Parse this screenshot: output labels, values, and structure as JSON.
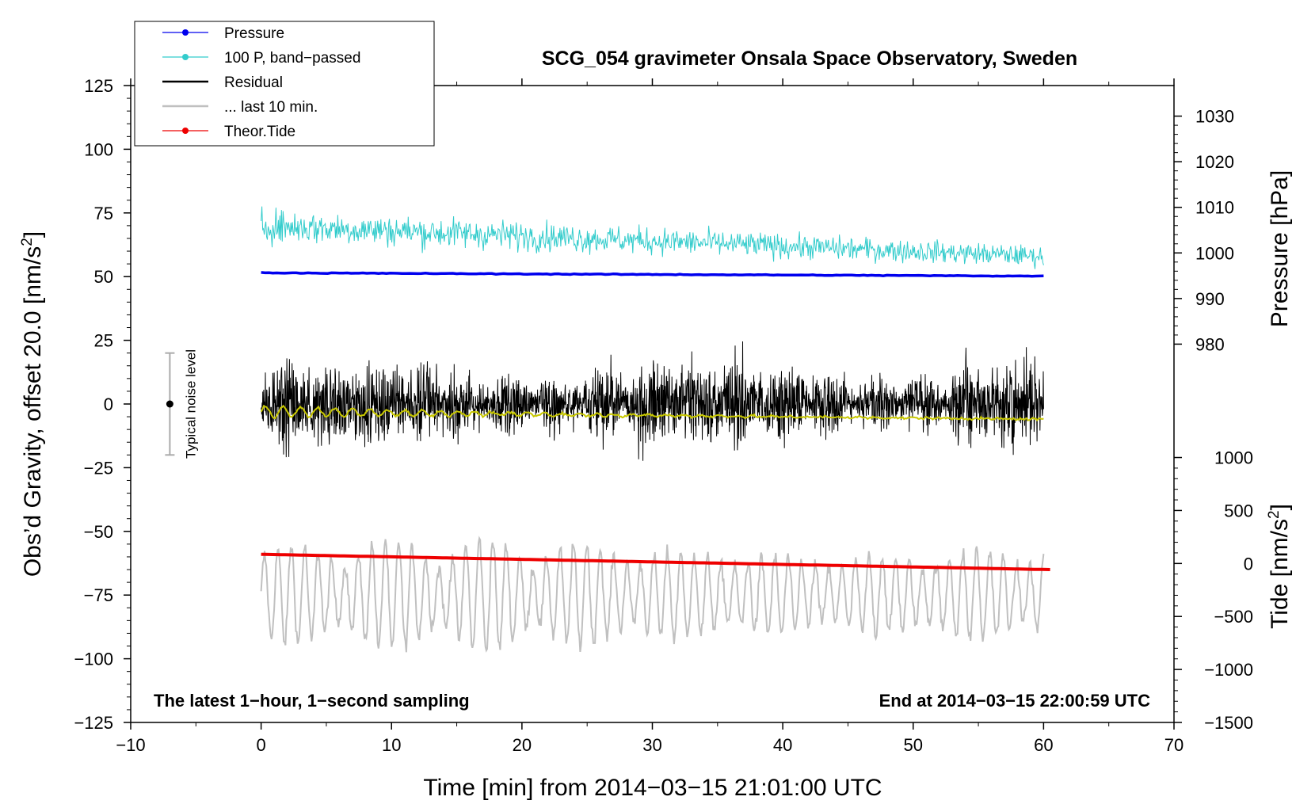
{
  "chart_data": {
    "type": "line",
    "title": "SCG_054 gravimeter Onsala Space Observatory, Sweden",
    "xlabel": "Time [min] from 2014−03−15 21:01:00 UTC",
    "ylabel_left": "Obs’d Gravity, offset 20.0 [nm/s",
    "ylabel_left_sup": "2",
    "ylabel_left_close": "]",
    "ylabel_right_pressure": "Pressure [hPa]",
    "ylabel_right_tide": "Tide [nm/s",
    "ylabel_right_tide_sup": "2",
    "ylabel_right_tide_close": "]",
    "xlim": [
      -10,
      70
    ],
    "ylim": [
      -125,
      125
    ],
    "x_ticks": [
      -10,
      0,
      10,
      20,
      30,
      40,
      50,
      60,
      70
    ],
    "x_tick_labels": [
      "−10",
      "0",
      "10",
      "20",
      "30",
      "40",
      "50",
      "60",
      "70"
    ],
    "y_ticks": [
      125,
      100,
      75,
      50,
      25,
      0,
      -25,
      -50,
      -75,
      -100,
      -125
    ],
    "y_tick_labels": [
      "125",
      "100",
      "75",
      "50",
      "25",
      "0",
      "−25",
      "−50",
      "−75",
      "−100",
      "−125"
    ],
    "pressure_axis": {
      "ticks": [
        1030,
        1020,
        1010,
        1000,
        990,
        980
      ],
      "tick_labels": [
        "1030",
        "1020",
        "1010",
        "1000",
        "990",
        "980"
      ],
      "range_hpa": [
        980,
        1030
      ],
      "maps_to_left_y": [
        23.5,
        113.0
      ]
    },
    "tide_axis": {
      "ticks": [
        1000,
        500,
        0,
        -500,
        -1000,
        -1500
      ],
      "tick_labels": [
        "1000",
        "500",
        "0",
        "−500",
        "−1000",
        "−1500"
      ],
      "range_nms2": [
        -1500,
        1000
      ],
      "maps_to_left_y": [
        -125,
        -21
      ]
    },
    "legend": [
      {
        "label": "Pressure",
        "color": "#0000ee",
        "marker": true
      },
      {
        "label": "100 P, band−passed",
        "color": "#33cccc",
        "marker": true
      },
      {
        "label": "Residual",
        "color": "#000000",
        "marker": false
      },
      {
        "label": "... last 10 min.",
        "color": "#c0c0c0",
        "marker": false
      },
      {
        "label": "Theor.Tide",
        "color": "#ee0000",
        "marker": true
      }
    ],
    "series": [
      {
        "name": "Pressure",
        "color": "#0000ee",
        "x_range": [
          0,
          60
        ],
        "left_y": [
          51.5,
          50.2
        ],
        "pressure_hpa": [
          997,
          996
        ]
      },
      {
        "name": "100 P, band−passed",
        "color": "#33cccc",
        "x_range": [
          0,
          60
        ],
        "left_y_center": [
          70,
          58
        ],
        "left_y_amplitude": [
          10,
          6
        ]
      },
      {
        "name": "Residual",
        "color": "#000000",
        "x_range": [
          0,
          60
        ],
        "left_y_center": 0,
        "left_y_amplitude": 25
      },
      {
        "name": "Residual smoothed",
        "color": "#c8c800",
        "x_range": [
          0,
          60
        ],
        "left_y": [
          -3,
          -6
        ]
      },
      {
        "name": "... last 10 min.",
        "color": "#c0c0c0",
        "x_range": [
          0,
          60
        ],
        "left_y_center": -75,
        "left_y_amplitude": 22
      },
      {
        "name": "Theor.Tide",
        "color": "#ee0000",
        "x_range": [
          0,
          60.5
        ],
        "left_y": [
          -59,
          -65
        ],
        "tide_nms2": [
          110,
          -70
        ]
      }
    ],
    "noise_level": {
      "label": "Typical noise level",
      "x": -7,
      "left_y_center": 0,
      "left_y_half_range": 20
    },
    "annotations": {
      "left": "The latest 1−hour, 1−second sampling",
      "right": "End at 2014−03−15 22:00:59 UTC"
    }
  }
}
